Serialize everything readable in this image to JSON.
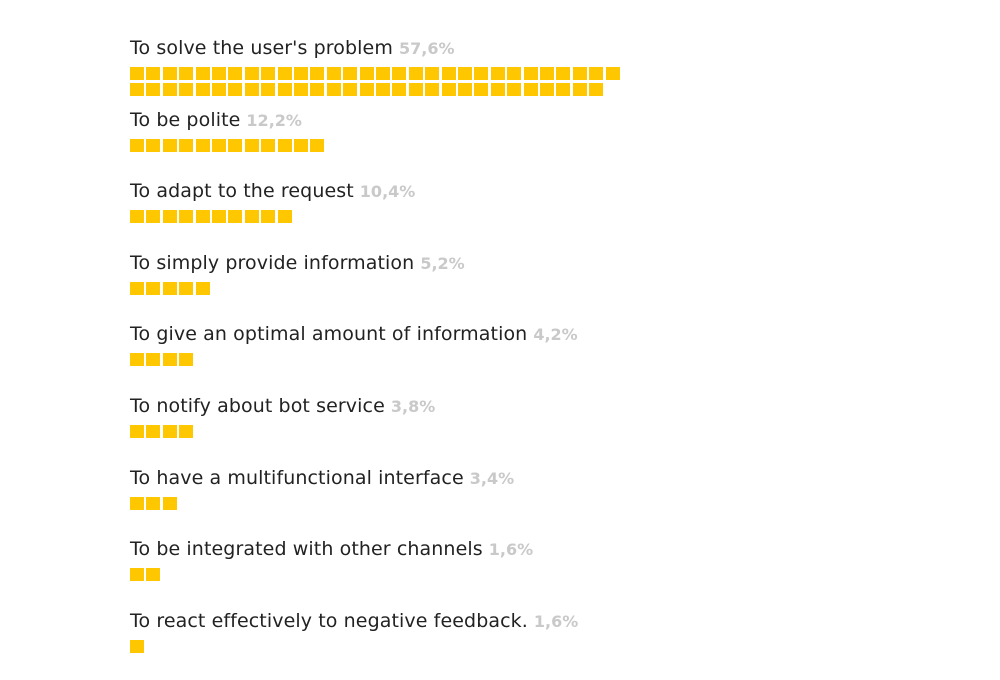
{
  "chart_data": {
    "type": "bar",
    "title": "",
    "xlabel": "",
    "ylabel": "",
    "value_unit": "%",
    "categories": [
      "To solve the user's problem",
      "To be polite",
      "To adapt to the request",
      "To simply provide information",
      "To give an optimal amount of information",
      "To notify about bot service",
      "To have a multifunctional interface",
      "To be integrated with other channels",
      "To react effectively to negative feedback."
    ],
    "values": [
      57.6,
      12.2,
      10.4,
      5.2,
      4.2,
      3.8,
      3.4,
      1.6,
      1.6
    ],
    "value_labels": [
      "57,6%",
      "12,2%",
      "10,4%",
      "5,2%",
      "4,2%",
      "3,8%",
      "3,4%",
      "1,6%",
      "1,6%"
    ],
    "square_counts": [
      59,
      12,
      10,
      5,
      4,
      4,
      3,
      2,
      1
    ],
    "bar_color": "#FFC700",
    "label_color": "#222222",
    "value_label_color": "#C9C9C9"
  }
}
